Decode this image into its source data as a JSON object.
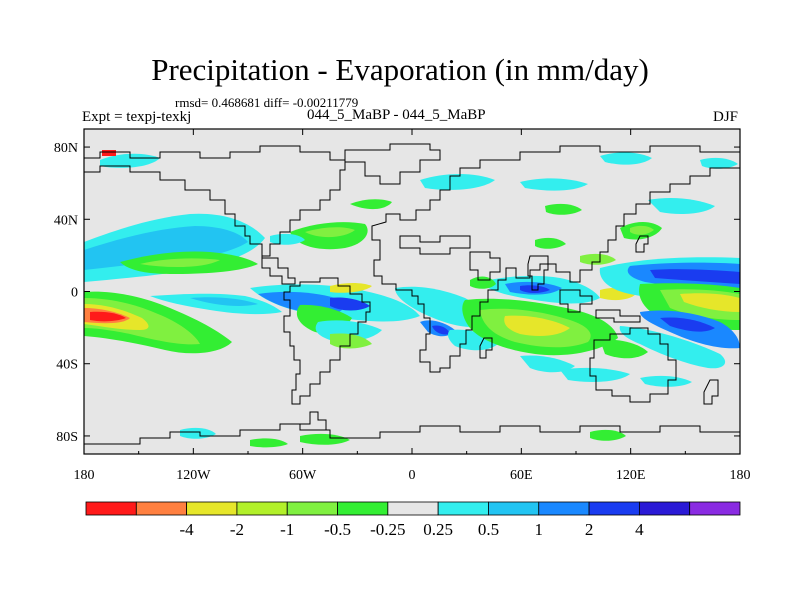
{
  "header": {
    "title": "Precipitation - Evaporation (in mm/day)",
    "stats": "rmsd= 0.468681 diff= -0.00211779",
    "experiment": "Expt = texpj-texkj",
    "subtitle": "044_5_MaBP - 044_5_MaBP",
    "season": "DJF"
  },
  "map": {
    "lat_labels": [
      "80N",
      "40N",
      "0",
      "40S",
      "80S"
    ],
    "lat_values": [
      80,
      40,
      0,
      -40,
      -80
    ],
    "lon_labels": [
      "180",
      "120W",
      "60W",
      "0",
      "60E",
      "120E",
      "180"
    ],
    "lon_values": [
      -180,
      -120,
      -60,
      0,
      60,
      120,
      180
    ],
    "lat_range": [
      -90,
      90
    ],
    "lon_range": [
      -180,
      180
    ],
    "background_color": "#e6e6e6"
  },
  "colorbar": {
    "colors": [
      "#ff1a1a",
      "#ff8040",
      "#e6e62a",
      "#b2f02a",
      "#80f040",
      "#33ee33",
      "#e6e6e6",
      "#33eeee",
      "#22c4f2",
      "#1a88ff",
      "#1a3cf0",
      "#2b1ad6",
      "#8a2be2"
    ],
    "labels": [
      "-4",
      "-2",
      "-1",
      "-0.5",
      "-0.25",
      "0.25",
      "0.5",
      "1",
      "2",
      "4"
    ]
  }
}
